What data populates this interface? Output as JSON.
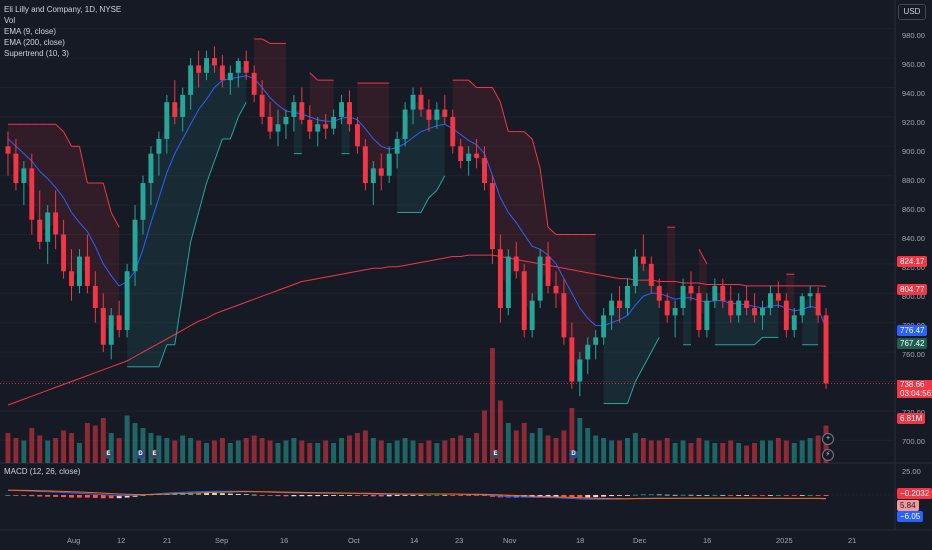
{
  "legend": {
    "title": "Eli Lilly and Company, 1D, NYSE",
    "vol": "Vol",
    "ema_fast": "EMA (9, close)",
    "ema_slow": "EMA (200, close)",
    "supertrend": "Supertrend (10, 3)",
    "macd": "MACD (12, 26, close)"
  },
  "currency": "USD",
  "price_axis": [
    "980.00",
    "960.00",
    "940.00",
    "920.00",
    "900.00",
    "880.00",
    "860.00",
    "840.00",
    "820.00",
    "800.00",
    "780.00",
    "760.00",
    "720.00",
    "700.00"
  ],
  "macd_axis": [
    "25.00"
  ],
  "x_axis": [
    "Aug",
    "12",
    "21",
    "Sep",
    "16",
    "Oct",
    "14",
    "23",
    "Nov",
    "18",
    "Dec",
    "16",
    "2025",
    "21"
  ],
  "tags": {
    "supertrend_upper": "824.17",
    "ema_slow_value": "804.77",
    "ema_fast_value": "776.47",
    "supertrend_lower": "767.42",
    "last_price": "738.66",
    "countdown": "03:04:56",
    "volume": "6.81M",
    "macd_value": "−0.2032",
    "macd_hist": "5.84",
    "macd_signal": "−6.05"
  },
  "colors": {
    "up": "#26a69a",
    "down": "#f23645",
    "ema_fast": "#2962ff",
    "ema_slow": "#f23645",
    "st_up_fill": "rgba(38,166,154,0.12)",
    "st_down_fill": "rgba(242,54,69,0.12)",
    "st_up_line": "#26a69a",
    "st_down_line": "#f23645"
  },
  "events": [
    {
      "type": "E"
    },
    {
      "type": "D"
    },
    {
      "type": "E"
    },
    {
      "type": "E"
    },
    {
      "type": "D"
    }
  ],
  "chart_data": {
    "type": "candlestick",
    "symbol": "Eli Lilly and Company",
    "interval": "1D",
    "exchange": "NYSE",
    "ylim": [
      690,
      990
    ],
    "candles": [
      [
        900,
        910,
        880,
        895
      ],
      [
        895,
        905,
        870,
        875
      ],
      [
        875,
        890,
        860,
        885
      ],
      [
        885,
        895,
        840,
        850
      ],
      [
        850,
        870,
        830,
        835
      ],
      [
        835,
        860,
        820,
        855
      ],
      [
        855,
        870,
        830,
        840
      ],
      [
        840,
        850,
        810,
        815
      ],
      [
        815,
        830,
        795,
        805
      ],
      [
        805,
        830,
        800,
        825
      ],
      [
        825,
        840,
        800,
        805
      ],
      [
        805,
        815,
        780,
        790
      ],
      [
        790,
        800,
        760,
        765
      ],
      [
        765,
        790,
        755,
        785
      ],
      [
        785,
        795,
        770,
        775
      ],
      [
        775,
        820,
        770,
        815
      ],
      [
        815,
        860,
        805,
        850
      ],
      [
        850,
        880,
        840,
        875
      ],
      [
        875,
        900,
        860,
        895
      ],
      [
        895,
        910,
        880,
        905
      ],
      [
        905,
        935,
        895,
        930
      ],
      [
        930,
        945,
        915,
        920
      ],
      [
        920,
        940,
        910,
        935
      ],
      [
        935,
        960,
        925,
        955
      ],
      [
        955,
        965,
        940,
        950
      ],
      [
        950,
        965,
        945,
        960
      ],
      [
        960,
        968,
        950,
        955
      ],
      [
        955,
        962,
        940,
        945
      ],
      [
        945,
        955,
        935,
        950
      ],
      [
        950,
        960,
        940,
        958
      ],
      [
        958,
        965,
        945,
        950
      ],
      [
        950,
        955,
        930,
        935
      ],
      [
        935,
        945,
        915,
        920
      ],
      [
        920,
        930,
        905,
        910
      ],
      [
        910,
        925,
        900,
        915
      ],
      [
        915,
        925,
        905,
        920
      ],
      [
        920,
        935,
        910,
        930
      ],
      [
        930,
        940,
        915,
        918
      ],
      [
        918,
        928,
        905,
        910
      ],
      [
        910,
        920,
        900,
        915
      ],
      [
        915,
        922,
        905,
        912
      ],
      [
        912,
        925,
        908,
        920
      ],
      [
        920,
        935,
        915,
        930
      ],
      [
        930,
        938,
        910,
        915
      ],
      [
        915,
        920,
        895,
        900
      ],
      [
        900,
        905,
        870,
        875
      ],
      [
        875,
        890,
        860,
        885
      ],
      [
        885,
        895,
        870,
        880
      ],
      [
        880,
        900,
        875,
        895
      ],
      [
        895,
        910,
        885,
        905
      ],
      [
        905,
        930,
        900,
        925
      ],
      [
        925,
        940,
        915,
        935
      ],
      [
        935,
        940,
        920,
        925
      ],
      [
        925,
        932,
        910,
        918
      ],
      [
        918,
        930,
        912,
        925
      ],
      [
        925,
        935,
        915,
        920
      ],
      [
        920,
        925,
        895,
        900
      ],
      [
        900,
        905,
        885,
        890
      ],
      [
        890,
        900,
        880,
        895
      ],
      [
        895,
        905,
        885,
        892
      ],
      [
        892,
        900,
        870,
        875
      ],
      [
        875,
        880,
        820,
        830
      ],
      [
        830,
        840,
        780,
        790
      ],
      [
        790,
        830,
        785,
        825
      ],
      [
        825,
        835,
        810,
        815
      ],
      [
        815,
        820,
        770,
        775
      ],
      [
        775,
        800,
        770,
        795
      ],
      [
        795,
        830,
        790,
        825
      ],
      [
        825,
        835,
        800,
        805
      ],
      [
        805,
        815,
        790,
        800
      ],
      [
        800,
        810,
        765,
        770
      ],
      [
        770,
        780,
        735,
        740
      ],
      [
        740,
        760,
        730,
        755
      ],
      [
        755,
        770,
        745,
        765
      ],
      [
        765,
        775,
        755,
        770
      ],
      [
        770,
        790,
        765,
        785
      ],
      [
        785,
        800,
        775,
        795
      ],
      [
        795,
        805,
        780,
        790
      ],
      [
        790,
        810,
        785,
        805
      ],
      [
        805,
        830,
        800,
        825
      ],
      [
        825,
        840,
        815,
        820
      ],
      [
        820,
        825,
        800,
        805
      ],
      [
        805,
        810,
        790,
        795
      ],
      [
        795,
        800,
        780,
        785
      ],
      [
        785,
        795,
        770,
        790
      ],
      [
        790,
        810,
        785,
        805
      ],
      [
        805,
        815,
        795,
        800
      ],
      [
        800,
        805,
        770,
        775
      ],
      [
        775,
        800,
        770,
        795
      ],
      [
        795,
        810,
        790,
        805
      ],
      [
        805,
        810,
        790,
        795
      ],
      [
        795,
        805,
        780,
        785
      ],
      [
        785,
        800,
        780,
        795
      ],
      [
        795,
        805,
        785,
        790
      ],
      [
        790,
        800,
        780,
        785
      ],
      [
        785,
        795,
        775,
        790
      ],
      [
        790,
        805,
        785,
        800
      ],
      [
        800,
        808,
        790,
        795
      ],
      [
        795,
        800,
        770,
        775
      ],
      [
        775,
        790,
        770,
        785
      ],
      [
        785,
        800,
        780,
        798
      ],
      [
        798,
        805,
        790,
        800
      ],
      [
        800,
        804,
        780,
        785
      ],
      [
        785,
        790,
        735,
        738.66
      ]
    ],
    "volume": [
      1.2,
      1.0,
      0.9,
      1.4,
      1.1,
      0.9,
      1.0,
      1.3,
      1.2,
      0.8,
      1.6,
      1.5,
      1.8,
      1.2,
      1.0,
      1.9,
      1.6,
      1.4,
      1.2,
      1.1,
      1.0,
      0.9,
      1.1,
      1.0,
      0.9,
      0.8,
      0.9,
      1.0,
      0.8,
      0.9,
      1.0,
      1.1,
      1.0,
      0.9,
      0.8,
      0.9,
      1.0,
      0.9,
      0.8,
      0.8,
      0.9,
      0.8,
      1.0,
      1.1,
      1.2,
      1.3,
      1.0,
      0.9,
      0.8,
      0.9,
      1.0,
      0.9,
      0.8,
      0.9,
      0.8,
      0.9,
      1.0,
      1.1,
      1.0,
      1.2,
      2.1,
      4.6,
      2.5,
      1.6,
      1.3,
      1.6,
      1.2,
      1.4,
      1.1,
      1.0,
      1.3,
      2.2,
      1.8,
      1.4,
      1.1,
      1.0,
      0.9,
      0.9,
      1.0,
      1.2,
      1.0,
      0.9,
      0.9,
      1.0,
      0.8,
      0.9,
      0.8,
      1.0,
      0.9,
      0.8,
      0.8,
      0.9,
      0.8,
      0.7,
      0.8,
      0.9,
      0.9,
      1.0,
      0.9,
      0.8,
      0.9,
      1.0,
      1.1,
      1.5
    ],
    "ema_fast": [
      905,
      900,
      895,
      890,
      883,
      878,
      872,
      865,
      855,
      848,
      842,
      832,
      820,
      812,
      805,
      808,
      815,
      830,
      848,
      865,
      882,
      895,
      905,
      915,
      925,
      932,
      940,
      945,
      946,
      947,
      948,
      946,
      940,
      933,
      928,
      924,
      923,
      922,
      920,
      918,
      917,
      917,
      919,
      920,
      918,
      912,
      905,
      900,
      898,
      899,
      902,
      906,
      910,
      912,
      914,
      915,
      912,
      908,
      904,
      901,
      895,
      880,
      865,
      855,
      848,
      840,
      832,
      830,
      826,
      820,
      810,
      800,
      790,
      783,
      778,
      778,
      780,
      782,
      785,
      792,
      798,
      800,
      800,
      798,
      796,
      797,
      797,
      795,
      794,
      795,
      795,
      793,
      793,
      792,
      791,
      790,
      791,
      792,
      790,
      788,
      789,
      791,
      790,
      776
    ],
    "ema_slow": [
      724,
      726,
      728,
      730,
      732,
      734,
      736,
      738,
      740,
      742,
      744,
      746,
      748,
      750,
      752,
      754,
      757,
      760,
      763,
      766,
      769,
      772,
      775,
      778,
      781,
      783,
      786,
      788,
      790,
      792,
      794,
      796,
      798,
      800,
      802,
      804,
      806,
      808,
      809,
      810,
      811,
      812,
      813,
      814,
      815,
      816,
      817,
      817,
      818,
      818,
      819,
      820,
      821,
      822,
      823,
      824,
      825,
      825,
      826,
      826,
      826,
      826,
      825,
      824,
      823,
      822,
      821,
      820,
      819,
      818,
      817,
      816,
      815,
      814,
      813,
      812,
      811,
      810,
      810,
      809,
      809,
      809,
      808,
      808,
      808,
      807,
      807,
      807,
      806,
      806,
      806,
      806,
      806,
      805,
      805,
      805,
      805,
      805,
      805,
      805,
      805,
      805,
      805,
      804.77
    ]
  }
}
